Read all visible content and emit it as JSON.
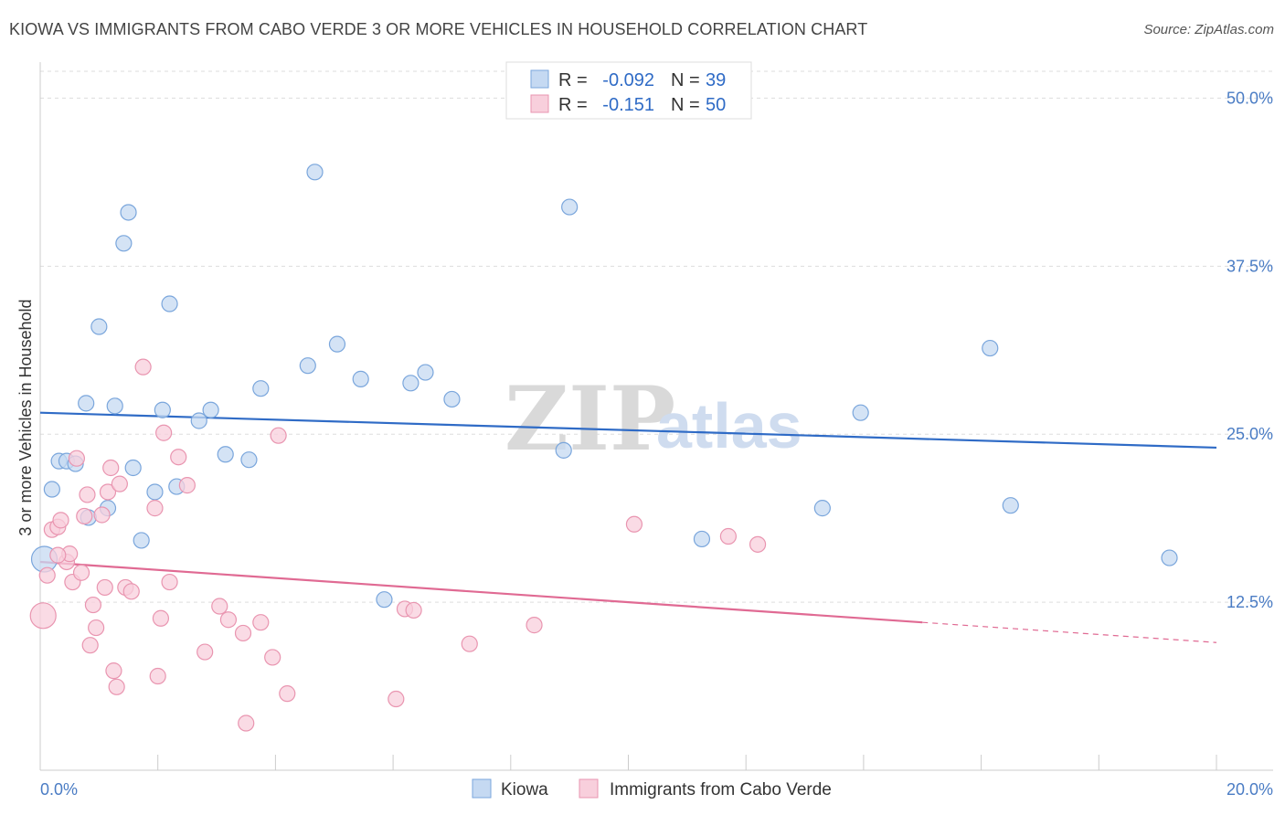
{
  "title": "KIOWA VS IMMIGRANTS FROM CABO VERDE 3 OR MORE VEHICLES IN HOUSEHOLD CORRELATION CHART",
  "source": "Source: ZipAtlas.com",
  "watermark": {
    "zip": "ZIP",
    "atlas": "atlas"
  },
  "legend": {
    "rows": [
      {
        "r_label": "R =",
        "r_value": "-0.092",
        "n_label": "N =",
        "n_value": "39"
      },
      {
        "r_label": "R =",
        "r_value": "-0.151",
        "n_label": "N =",
        "n_value": "50"
      }
    ]
  },
  "chart_data": {
    "type": "scatter",
    "title": "KIOWA VS IMMIGRANTS FROM CABO VERDE 3 OR MORE VEHICLES IN HOUSEHOLD CORRELATION CHART",
    "xlabel": "",
    "ylabel": "3 or more Vehicles in Household",
    "xlim": [
      0,
      20
    ],
    "ylim": [
      0,
      52
    ],
    "x_tick_labels": {
      "min": "0.0%",
      "max": "20.0%"
    },
    "y_ticks": [
      {
        "value": 12.5,
        "label": "12.5%"
      },
      {
        "value": 25.0,
        "label": "25.0%"
      },
      {
        "value": 37.5,
        "label": "37.5%"
      },
      {
        "value": 50.0,
        "label": "50.0%"
      }
    ],
    "colors": {
      "kiowa_fill": "#c5d9f2",
      "kiowa_stroke": "#7aa6dc",
      "kiowa_line": "#2f6bc6",
      "cabo_fill": "#f8cfdc",
      "cabo_stroke": "#e995b0",
      "cabo_line": "#e06a93",
      "tick_label": "#4a7cc4",
      "grid": "#dddddd"
    },
    "series": [
      {
        "name": "Kiowa",
        "r": -0.092,
        "n": 39,
        "trend": {
          "x0": 0,
          "y0": 26.6,
          "x1": 20,
          "y1": 24.0
        },
        "points": [
          [
            0.07,
            15.7
          ],
          [
            0.2,
            20.9
          ],
          [
            0.32,
            23.0
          ],
          [
            0.45,
            23.0
          ],
          [
            0.6,
            22.8
          ],
          [
            0.78,
            27.3
          ],
          [
            0.82,
            18.8
          ],
          [
            1.0,
            33.0
          ],
          [
            1.15,
            19.5
          ],
          [
            1.27,
            27.1
          ],
          [
            1.42,
            39.2
          ],
          [
            1.5,
            41.5
          ],
          [
            1.58,
            22.5
          ],
          [
            1.72,
            17.1
          ],
          [
            1.95,
            20.7
          ],
          [
            2.08,
            26.8
          ],
          [
            2.2,
            34.7
          ],
          [
            2.32,
            21.1
          ],
          [
            2.7,
            26.0
          ],
          [
            2.9,
            26.8
          ],
          [
            3.15,
            23.5
          ],
          [
            3.55,
            23.1
          ],
          [
            3.75,
            28.4
          ],
          [
            4.55,
            30.1
          ],
          [
            4.67,
            44.5
          ],
          [
            5.05,
            31.7
          ],
          [
            5.45,
            29.1
          ],
          [
            5.85,
            12.7
          ],
          [
            6.3,
            28.8
          ],
          [
            6.55,
            29.6
          ],
          [
            7.0,
            27.6
          ],
          [
            8.9,
            23.8
          ],
          [
            9.0,
            41.9
          ],
          [
            11.25,
            17.2
          ],
          [
            13.3,
            19.5
          ],
          [
            13.95,
            26.6
          ],
          [
            16.15,
            31.4
          ],
          [
            16.5,
            19.7
          ],
          [
            19.2,
            15.8
          ]
        ]
      },
      {
        "name": "Immigrants from Cabo Verde",
        "r": -0.151,
        "n": 50,
        "trend": {
          "x0": 0,
          "y0": 15.5,
          "x1": 15.0,
          "y1": 11.0,
          "dash_to_x": 20.0,
          "dash_to_y": 9.5
        },
        "points": [
          [
            0.05,
            11.5
          ],
          [
            0.12,
            14.5
          ],
          [
            0.2,
            17.9
          ],
          [
            0.3,
            18.1
          ],
          [
            0.35,
            18.6
          ],
          [
            0.45,
            15.5
          ],
          [
            0.5,
            16.1
          ],
          [
            0.55,
            14.0
          ],
          [
            0.62,
            23.2
          ],
          [
            0.7,
            14.7
          ],
          [
            0.75,
            18.9
          ],
          [
            0.8,
            20.5
          ],
          [
            0.85,
            9.3
          ],
          [
            0.9,
            12.3
          ],
          [
            0.95,
            10.6
          ],
          [
            1.05,
            19.0
          ],
          [
            1.1,
            13.6
          ],
          [
            1.15,
            20.7
          ],
          [
            1.2,
            22.5
          ],
          [
            1.25,
            7.4
          ],
          [
            1.3,
            6.2
          ],
          [
            1.35,
            21.3
          ],
          [
            1.45,
            13.6
          ],
          [
            1.55,
            13.3
          ],
          [
            1.75,
            30.0
          ],
          [
            1.95,
            19.5
          ],
          [
            2.0,
            7.0
          ],
          [
            2.05,
            11.3
          ],
          [
            2.1,
            25.1
          ],
          [
            2.2,
            14.0
          ],
          [
            2.35,
            23.3
          ],
          [
            2.5,
            21.2
          ],
          [
            2.8,
            8.8
          ],
          [
            3.05,
            12.2
          ],
          [
            3.2,
            11.2
          ],
          [
            3.45,
            10.2
          ],
          [
            3.5,
            3.5
          ],
          [
            3.75,
            11.0
          ],
          [
            3.95,
            8.4
          ],
          [
            4.05,
            24.9
          ],
          [
            4.2,
            5.7
          ],
          [
            6.05,
            5.3
          ],
          [
            6.2,
            12.0
          ],
          [
            6.35,
            11.9
          ],
          [
            7.3,
            9.4
          ],
          [
            8.4,
            10.8
          ],
          [
            10.1,
            18.3
          ],
          [
            11.7,
            17.4
          ],
          [
            12.2,
            16.8
          ],
          [
            0.3,
            16.0
          ]
        ]
      }
    ]
  },
  "bottom_legend": [
    {
      "label": "Kiowa"
    },
    {
      "label": "Immigrants from Cabo Verde"
    }
  ]
}
